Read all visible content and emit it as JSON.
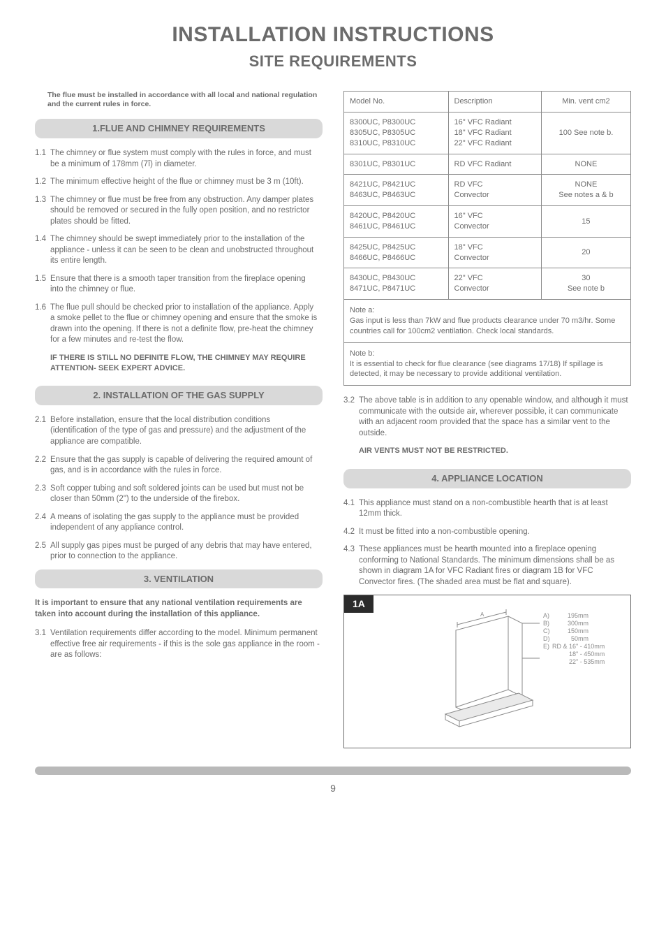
{
  "title": "INSTALLATION INSTRUCTIONS",
  "subtitle": "SITE REQUIREMENTS",
  "page_number": "9",
  "left": {
    "intro": "The flue must be installed in accordance with all local and national regulation and the current rules in force.",
    "s1": {
      "head": "1.FLUE AND CHIMNEY REQUIREMENTS",
      "items": [
        {
          "n": "1.1",
          "t": "The chimney or flue system must comply with the rules in force, and must be a minimum of 178mm (7î) in diameter."
        },
        {
          "n": "1.2",
          "t": "The minimum effective height of the flue or chimney must be 3 m (10ft)."
        },
        {
          "n": "1.3",
          "t": "The chimney or flue must be free from any obstruction. Any damper plates should be removed or secured in the fully open position, and no restrictor plates should be fitted."
        },
        {
          "n": "1.4",
          "t": "The chimney should be swept immediately prior to the installation of the appliance - unless it can be seen to be clean and unobstructed throughout its entire length."
        },
        {
          "n": "1.5",
          "t": "Ensure that there is a smooth taper transition from the fireplace opening into the chimney or flue."
        },
        {
          "n": "1.6",
          "t": "The flue pull should be checked prior to installation of the appliance. Apply a smoke pellet to the flue or chimney opening and ensure that the smoke is drawn into the opening. If there is not a definite flow, pre-heat the chimney for a few minutes and re-test the flow."
        }
      ],
      "bold_note": "IF THERE IS STILL NO DEFINITE FLOW, THE CHIMNEY MAY REQUIRE ATTENTION- SEEK EXPERT ADVICE."
    },
    "s2": {
      "head": "2. INSTALLATION OF THE GAS SUPPLY",
      "items": [
        {
          "n": "2.1",
          "t": "Before installation, ensure that the local distribution conditions (identification of the type of gas and pressure) and the adjustment of the appliance are compatible."
        },
        {
          "n": "2.2",
          "t": "Ensure that the gas supply is capable of delivering the required amount of gas, and is in accordance with the rules in force."
        },
        {
          "n": "2.3",
          "t": "Soft copper tubing and soft soldered joints can be used but must not be closer than 50mm (2\") to the underside of the firebox."
        },
        {
          "n": "2.4",
          "t": "A means of isolating the gas supply to the appliance must be provided independent of any appliance control."
        },
        {
          "n": "2.5",
          "t": "All supply gas pipes must be purged of any debris that may have entered, prior to connection to the appliance."
        }
      ]
    },
    "s3": {
      "head": "3. VENTILATION",
      "bold_intro": "It is important to ensure that any national ventilation requirements are taken into account during the installation of this appliance.",
      "items": [
        {
          "n": "3.1",
          "t": "Ventilation requirements differ according to the model. Minimum permanent effective free air requirements - if this is the sole gas appliance in the room - are as follows:"
        }
      ]
    }
  },
  "right": {
    "table": {
      "headers": [
        "Model No.",
        "Description",
        "Min. vent cm2"
      ],
      "rows": [
        {
          "c0": "8300UC, P8300UC\n8305UC, P8305UC\n8310UC, P8310UC",
          "c1": "16\" VFC Radiant\n18\" VFC Radiant\n22\" VFC Radiant",
          "c2": "100 See note b."
        },
        {
          "c0": "8301UC, P8301UC",
          "c1": "RD VFC Radiant",
          "c2": "NONE"
        },
        {
          "c0": "8421UC, P8421UC\n8463UC, P8463UC",
          "c1": "RD VFC\nConvector",
          "c2": "NONE\nSee notes a & b"
        },
        {
          "c0": "8420UC, P8420UC\n8461UC, P8461UC",
          "c1": "16\" VFC\nConvector",
          "c2": "15"
        },
        {
          "c0": "8425UC, P8425UC\n8466UC, P8466UC",
          "c1": "18\" VFC\nConvector",
          "c2": "20"
        },
        {
          "c0": "8430UC, P8430UC\n8471UC, P8471UC",
          "c1": "22\" VFC\nConvector",
          "c2": "30\nSee note b"
        }
      ]
    },
    "note_a_title": "Note a:",
    "note_a_body": "Gas input is less than 7kW and flue products clearance under  70 m3/hr.  Some countries call for 100cm2 ventilation. Check local standards.",
    "note_b_title": "Note b:",
    "note_b_body": "It is essential to check for flue clearance (see diagrams 17/18) If spillage is detected, it may be necessary to provide additional ventilation.",
    "item32": {
      "n": "3.2",
      "t": "The above table is in addition to any openable window, and although it must communicate with the outside air, wherever possible, it can communicate with an adjacent room provided that the space has a similar vent to the outside."
    },
    "vents_bold": "AIR VENTS MUST NOT BE RESTRICTED.",
    "s4": {
      "head": "4. APPLIANCE LOCATION",
      "items": [
        {
          "n": "4.1",
          "t": "This appliance must stand on a non-combustible hearth that is at least 12mm thick."
        },
        {
          "n": "4.2",
          "t": " It must be fitted into a non-combustible opening."
        },
        {
          "n": "4.3",
          "t": "These appliances must be hearth mounted into a fireplace opening conforming to National Standards. The minimum dimensions shall be as shown in diagram 1A for VFC Radiant fires or diagram 1B for VFC Convector fires. (The shaded area must be flat and square)."
        }
      ]
    },
    "fig": {
      "tag": "1A",
      "labels": {
        "A": "A)",
        "Av": "195mm",
        "B": "B)",
        "Bv": "300mm",
        "C": "C)",
        "Cv": "150mm",
        "D": "D)",
        "Dv": "50mm",
        "E": "E)",
        "Ev1": "RD & 16\" - 410mm",
        "Ev2": "18\" - 450mm",
        "Ev3": "22\" - 535mm"
      }
    }
  },
  "colors": {
    "text": "#6b6b6b",
    "pill_bg": "#d9d9d9",
    "border": "#8a8a8a",
    "fig_tag_bg": "#2b2b2b",
    "footer_bar": "#b9b9b9"
  }
}
